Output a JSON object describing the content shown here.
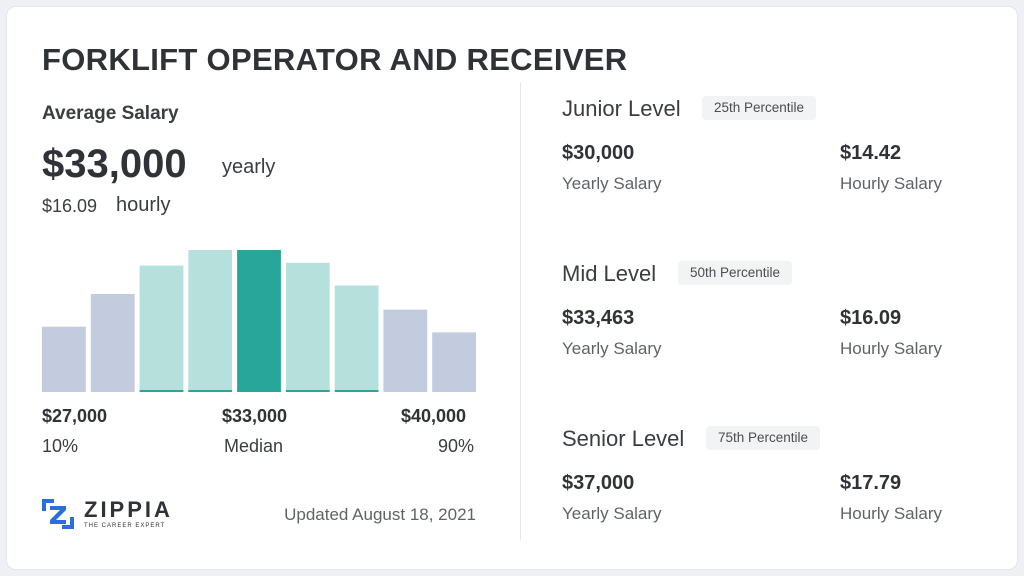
{
  "title": "FORKLIFT OPERATOR AND RECEIVER",
  "average": {
    "label": "Average Salary",
    "yearly_value": "$33,000",
    "yearly_unit": "yearly",
    "hourly_value": "$16.09",
    "hourly_unit": "hourly"
  },
  "chart_data": {
    "type": "bar",
    "values": [
      0.46,
      0.69,
      0.89,
      1.0,
      1.0,
      0.91,
      0.75,
      0.58,
      0.42
    ],
    "highlight_index": 4,
    "fills": [
      "#c3cbdf",
      "#c3cbdf",
      "#b6e0dc",
      "#b6e0dc",
      "#27a699",
      "#b6e0dc",
      "#b6e0dc",
      "#c3cbdf",
      "#c3cbdf"
    ],
    "tick_labels": [
      {
        "value": "$27,000",
        "pct": "10%"
      },
      {
        "value": "$33,000",
        "pct": "Median"
      },
      {
        "value": "$40,000",
        "pct": "90%"
      }
    ]
  },
  "levels": [
    {
      "name": "Junior Level",
      "percentile": "25th Percentile",
      "yearly": "$30,000",
      "yearly_label": "Yearly Salary",
      "hourly": "$14.42",
      "hourly_label": "Hourly Salary"
    },
    {
      "name": "Mid Level",
      "percentile": "50th Percentile",
      "yearly": "$33,463",
      "yearly_label": "Yearly Salary",
      "hourly": "$16.09",
      "hourly_label": "Hourly Salary"
    },
    {
      "name": "Senior Level",
      "percentile": "75th Percentile",
      "yearly": "$37,000",
      "yearly_label": "Yearly Salary",
      "hourly": "$17.79",
      "hourly_label": "Hourly Salary"
    }
  ],
  "footer": {
    "brand": "ZIPPIA",
    "tagline": "THE CAREER EXPERT",
    "updated": "Updated August 18, 2021"
  },
  "colors": {
    "accent": "#27a699",
    "bar_light_teal": "#b6e0dc",
    "bar_slate": "#c3cbdf",
    "logo_blue": "#2a6ede"
  }
}
